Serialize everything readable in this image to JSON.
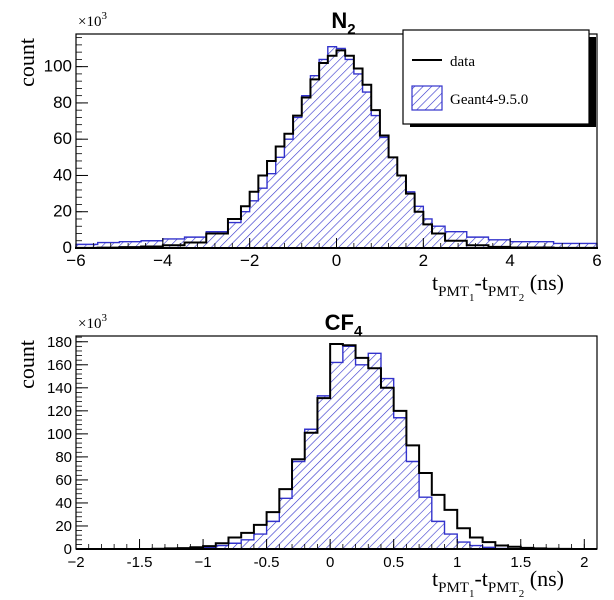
{
  "chart_data": [
    {
      "type": "histogram",
      "title": "N",
      "title_subscript": "2",
      "ylabel": "count",
      "y_multiplier": "×10",
      "y_multiplier_exp": "3",
      "xlabel": {
        "t": "t",
        "sub1": "PMT",
        "subsub1": "1",
        "dash": "-t",
        "sub2": "PMT",
        "subsub2": "2",
        "unit": " (ns)"
      },
      "xlim": [
        -6,
        6
      ],
      "ylim": [
        0,
        118
      ],
      "x_ticks": [
        -6,
        -4,
        -2,
        0,
        2,
        4,
        6
      ],
      "y_ticks": [
        0,
        20,
        40,
        60,
        80,
        100
      ],
      "legend": {
        "placement": "top-right",
        "entries": [
          {
            "label": "data",
            "style": "line"
          },
          {
            "label": "Geant4-9.5.0",
            "style": "hatched-fill"
          }
        ]
      },
      "colors": {
        "data": "#000000",
        "sim": "#3333cc"
      },
      "series": [
        {
          "name": "data",
          "bin_width": 0.2,
          "x": [
            -6.0,
            -5.5,
            -5.0,
            -4.5,
            -4.0,
            -3.5,
            -3.0,
            -2.5,
            -2.2,
            -2.0,
            -1.8,
            -1.6,
            -1.4,
            -1.2,
            -1.0,
            -0.8,
            -0.6,
            -0.4,
            -0.2,
            0.0,
            0.2,
            0.4,
            0.6,
            0.8,
            1.0,
            1.2,
            1.4,
            1.6,
            1.8,
            2.0,
            2.2,
            2.5,
            3.0,
            3.5,
            4.0,
            5.0,
            6.0
          ],
          "values": [
            0.1,
            0.2,
            0.5,
            0.8,
            1.5,
            3,
            8,
            16,
            23,
            31,
            40,
            48,
            56,
            63,
            73,
            83,
            93,
            102,
            106,
            109,
            106,
            99,
            90,
            76,
            62,
            50,
            40,
            30,
            20,
            13,
            8,
            4,
            1.5,
            0.6,
            0.3,
            0.1,
            0
          ]
        },
        {
          "name": "Geant4-9.5.0",
          "bin_width": 0.2,
          "x": [
            -6.0,
            -5.5,
            -5.0,
            -4.5,
            -4.0,
            -3.5,
            -3.0,
            -2.5,
            -2.2,
            -2.0,
            -1.8,
            -1.6,
            -1.4,
            -1.2,
            -1.0,
            -0.8,
            -0.6,
            -0.4,
            -0.2,
            0.0,
            0.2,
            0.4,
            0.6,
            0.8,
            1.0,
            1.2,
            1.4,
            1.6,
            1.8,
            2.0,
            2.2,
            2.5,
            3.0,
            3.5,
            4.0,
            5.0,
            6.0
          ],
          "values": [
            2,
            3,
            3.5,
            4,
            5,
            6,
            9,
            14,
            20,
            26,
            33,
            41,
            50,
            60,
            72,
            84,
            95,
            104,
            111,
            110,
            104,
            96,
            86,
            73,
            61,
            50,
            40,
            31,
            23,
            16,
            12,
            9,
            6,
            4.5,
            3.5,
            2.5,
            2
          ]
        }
      ]
    },
    {
      "type": "histogram",
      "title": "CF",
      "title_subscript": "4",
      "ylabel": "count",
      "y_multiplier": "×10",
      "y_multiplier_exp": "3",
      "xlabel": {
        "t": "t",
        "sub1": "PMT",
        "subsub1": "1",
        "dash": "-t",
        "sub2": "PMT",
        "subsub2": "2",
        "unit": " (ns)"
      },
      "xlim": [
        -2,
        2.1
      ],
      "ylim": [
        0,
        185
      ],
      "x_ticks": [
        -2,
        -1.5,
        -1,
        -0.5,
        0,
        0.5,
        1,
        1.5,
        2
      ],
      "y_ticks": [
        0,
        20,
        40,
        60,
        80,
        100,
        120,
        140,
        160,
        180
      ],
      "colors": {
        "data": "#000000",
        "sim": "#3333cc"
      },
      "series": [
        {
          "name": "data",
          "bin_width": 0.1,
          "x": [
            -2.0,
            -1.9,
            -1.8,
            -1.7,
            -1.6,
            -1.5,
            -1.4,
            -1.3,
            -1.2,
            -1.1,
            -1.0,
            -0.9,
            -0.8,
            -0.7,
            -0.6,
            -0.5,
            -0.4,
            -0.3,
            -0.2,
            -0.1,
            0.0,
            0.1,
            0.2,
            0.3,
            0.4,
            0.5,
            0.6,
            0.7,
            0.8,
            0.9,
            1.0,
            1.1,
            1.2,
            1.3,
            1.4,
            1.5,
            1.6,
            1.7,
            1.8,
            1.9,
            2.0
          ],
          "values": [
            0,
            0,
            0,
            0,
            0,
            0,
            0.2,
            0.5,
            0.8,
            1.5,
            2.5,
            5,
            10,
            14,
            21,
            32,
            52,
            78,
            101,
            131,
            178,
            177,
            166,
            157,
            140,
            120,
            90,
            66,
            47,
            34,
            18,
            10,
            6,
            3,
            2,
            1,
            0.5,
            0.2,
            0.1,
            0,
            0
          ]
        },
        {
          "name": "Geant4-9.5.0",
          "bin_width": 0.1,
          "x": [
            -2.0,
            -1.9,
            -1.8,
            -1.7,
            -1.6,
            -1.5,
            -1.4,
            -1.3,
            -1.2,
            -1.1,
            -1.0,
            -0.9,
            -0.8,
            -0.7,
            -0.6,
            -0.5,
            -0.4,
            -0.3,
            -0.2,
            -0.1,
            0.0,
            0.1,
            0.2,
            0.3,
            0.4,
            0.5,
            0.6,
            0.7,
            0.8,
            0.9,
            1.0,
            1.1,
            1.2,
            1.3,
            1.4,
            1.5,
            1.6,
            1.7,
            1.8,
            1.9,
            2.0
          ],
          "values": [
            0,
            0,
            0,
            0,
            0,
            0,
            0,
            0.2,
            0.5,
            1,
            1.5,
            3,
            5,
            8,
            13,
            24,
            44,
            76,
            104,
            133,
            162,
            176,
            160,
            170,
            148,
            114,
            76,
            45,
            24,
            13,
            6,
            3,
            1.5,
            0.5,
            0.2,
            0,
            0,
            0,
            0,
            0,
            0
          ]
        }
      ]
    }
  ]
}
